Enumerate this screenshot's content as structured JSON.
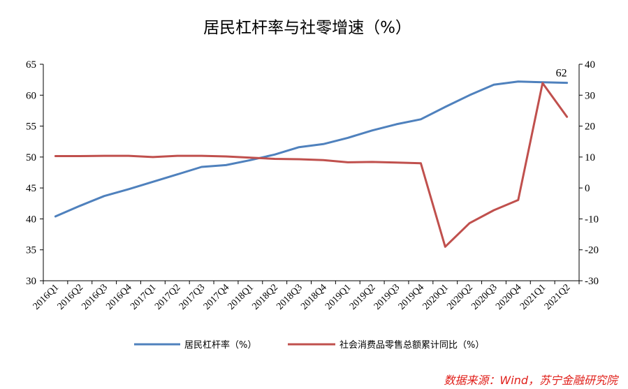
{
  "chart_data": {
    "type": "line",
    "title": "居民杠杆率与社零增速（%）",
    "categories": [
      "2016Q1",
      "2016Q2",
      "2016Q3",
      "2016Q4",
      "2017Q1",
      "2017Q2",
      "2017Q3",
      "2017Q4",
      "2018Q1",
      "2018Q2",
      "2018Q3",
      "2018Q4",
      "2019Q1",
      "2019Q2",
      "2019Q3",
      "2019Q4",
      "2020Q1",
      "2020Q2",
      "2020Q3",
      "2020Q4",
      "2021Q1",
      "2021Q2"
    ],
    "series": [
      {
        "name": "居民杠杆率（%）",
        "axis": "left",
        "color": "#4f81bd",
        "values": [
          40.4,
          42.1,
          43.7,
          44.8,
          46.0,
          47.2,
          48.4,
          48.7,
          49.5,
          50.4,
          51.6,
          52.1,
          53.1,
          54.3,
          55.3,
          56.1,
          58.1,
          60.0,
          61.7,
          62.2,
          62.1,
          62.0
        ]
      },
      {
        "name": "社会消费品零售总额累计同比（%）",
        "axis": "right",
        "color": "#c0504d",
        "values": [
          10.3,
          10.3,
          10.4,
          10.4,
          10.0,
          10.4,
          10.4,
          10.2,
          9.8,
          9.4,
          9.3,
          9.0,
          8.3,
          8.4,
          8.2,
          8.0,
          -19.0,
          -11.4,
          -7.2,
          -3.9,
          33.9,
          23.0
        ]
      }
    ],
    "y_left": {
      "min": 30,
      "max": 65,
      "step": 5
    },
    "y_right": {
      "min": -30,
      "max": 40,
      "step": 10
    },
    "annotations": [
      {
        "text": "62",
        "series": 0,
        "category": "2021Q2"
      }
    ],
    "legend": "bottom",
    "grid": false
  },
  "source": "数据来源：Wind，苏宁金融研究院"
}
